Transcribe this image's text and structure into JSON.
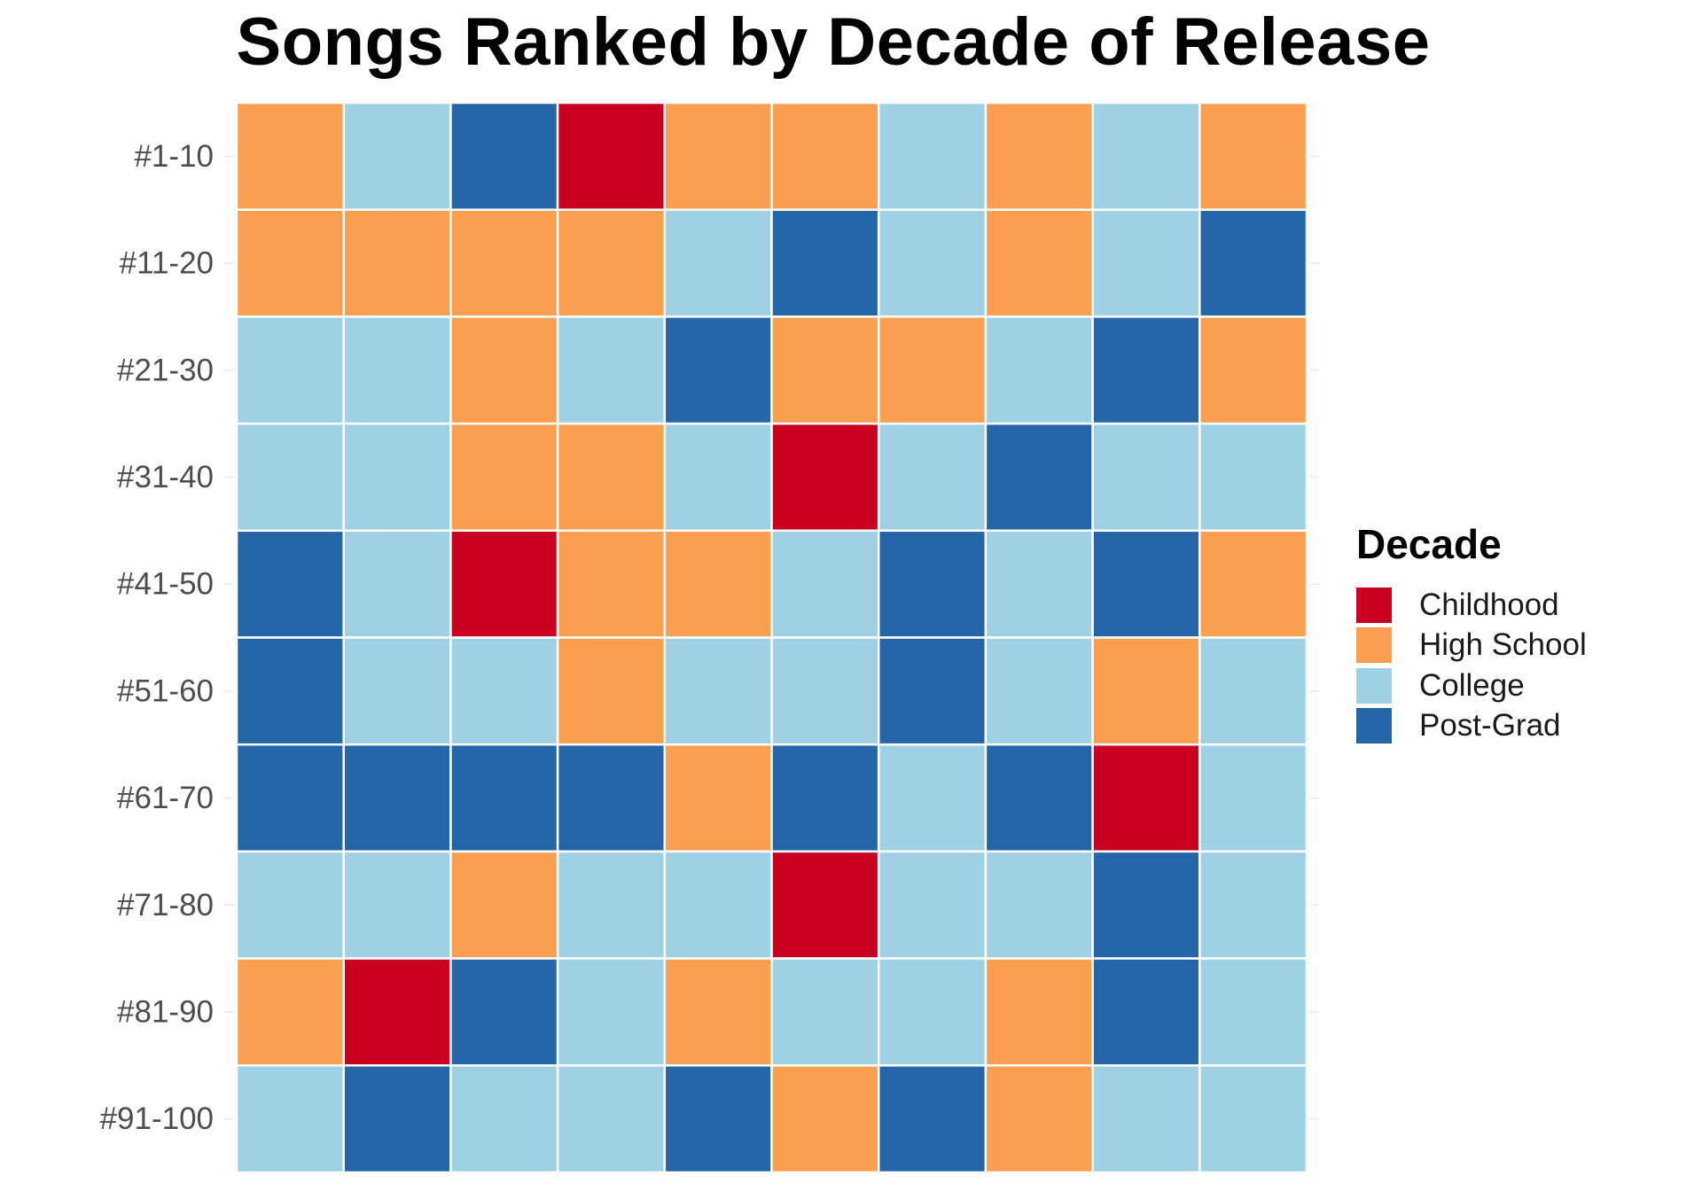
{
  "chart_data": {
    "type": "heatmap",
    "title": "Songs Ranked by Decade of Release",
    "rows": [
      "#1-10",
      "#11-20",
      "#21-30",
      "#31-40",
      "#41-50",
      "#51-60",
      "#61-70",
      "#71-80",
      "#81-90",
      "#91-100"
    ],
    "legend": {
      "title": "Decade",
      "placement": "right",
      "categories": [
        {
          "name": "Childhood",
          "color": "#ca0020"
        },
        {
          "name": "High School",
          "color": "#fa9e50"
        },
        {
          "name": "College",
          "color": "#a0d0e3"
        },
        {
          "name": "Post-Grad",
          "color": "#2566a8"
        }
      ]
    },
    "grid": true,
    "cells": [
      [
        "High School",
        "College",
        "Post-Grad",
        "Childhood",
        "High School",
        "High School",
        "College",
        "High School",
        "College",
        "High School"
      ],
      [
        "High School",
        "High School",
        "High School",
        "High School",
        "College",
        "Post-Grad",
        "College",
        "High School",
        "College",
        "Post-Grad"
      ],
      [
        "College",
        "College",
        "High School",
        "College",
        "Post-Grad",
        "High School",
        "High School",
        "College",
        "Post-Grad",
        "High School"
      ],
      [
        "College",
        "College",
        "High School",
        "High School",
        "College",
        "Childhood",
        "College",
        "Post-Grad",
        "College",
        "College"
      ],
      [
        "Post-Grad",
        "College",
        "Childhood",
        "High School",
        "High School",
        "College",
        "Post-Grad",
        "College",
        "Post-Grad",
        "High School"
      ],
      [
        "Post-Grad",
        "College",
        "College",
        "High School",
        "College",
        "College",
        "Post-Grad",
        "College",
        "High School",
        "College"
      ],
      [
        "Post-Grad",
        "Post-Grad",
        "Post-Grad",
        "Post-Grad",
        "High School",
        "Post-Grad",
        "College",
        "Post-Grad",
        "Childhood",
        "College"
      ],
      [
        "College",
        "College",
        "High School",
        "College",
        "College",
        "Childhood",
        "College",
        "College",
        "Post-Grad",
        "College"
      ],
      [
        "High School",
        "Childhood",
        "Post-Grad",
        "College",
        "High School",
        "College",
        "College",
        "High School",
        "Post-Grad",
        "College"
      ],
      [
        "College",
        "Post-Grad",
        "College",
        "College",
        "Post-Grad",
        "High School",
        "Post-Grad",
        "High School",
        "College",
        "College"
      ]
    ]
  },
  "colors": {
    "tick_label": "#4d4d4d",
    "tick_mark": "#ebebeb",
    "cell_border": "#ffffff"
  }
}
